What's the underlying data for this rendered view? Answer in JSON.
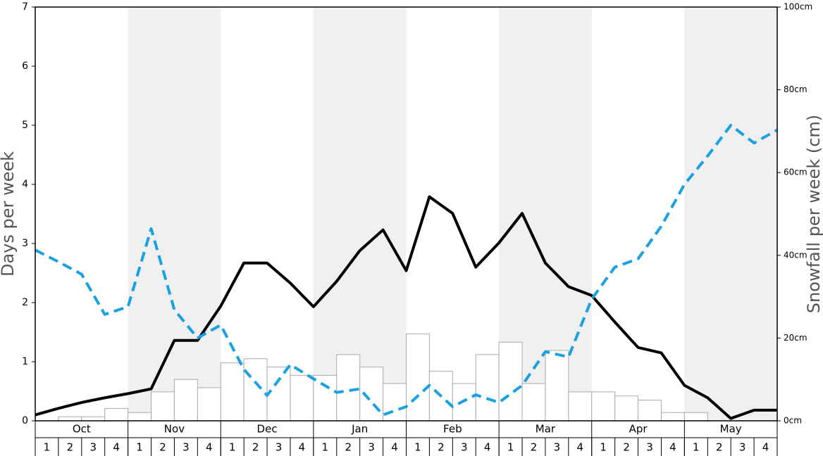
{
  "chart_data": [
    {
      "type": "bar",
      "months": [
        "Oct",
        "Nov",
        "Dec",
        "Jan",
        "Feb",
        "Mar",
        "Apr",
        "May"
      ],
      "categories": [
        "1",
        "2",
        "3",
        "4",
        "1",
        "2",
        "3",
        "4",
        "1",
        "2",
        "3",
        "4",
        "1",
        "2",
        "3",
        "4",
        "1",
        "2",
        "3",
        "4",
        "1",
        "2",
        "3",
        "4",
        "1",
        "2",
        "3",
        "4",
        "1",
        "2",
        "3",
        "4"
      ],
      "series": [
        {
          "axis": "y2",
          "color": "#ffffff",
          "values": [
            0,
            1,
            1,
            3,
            2,
            7,
            10,
            8,
            14,
            15,
            13,
            11,
            11,
            16,
            13,
            9,
            21,
            12,
            9,
            16,
            19,
            9,
            17,
            7,
            7,
            6,
            5,
            2,
            2,
            0,
            0,
            0
          ]
        }
      ],
      "y2label": "Snowfall per week (cm)",
      "y2lim": [
        0,
        100
      ],
      "y2ticks": [
        {
          "value": 0,
          "label": "0cm"
        },
        {
          "value": 20,
          "label": "20cm"
        },
        {
          "value": 40,
          "label": "40cm"
        },
        {
          "value": 60,
          "label": "60cm"
        },
        {
          "value": 80,
          "label": "80cm"
        },
        {
          "value": 100,
          "label": "100cm"
        }
      ]
    },
    {
      "type": "line",
      "x": [
        0,
        1,
        2,
        3,
        4,
        5,
        6,
        7,
        8,
        9,
        10,
        11,
        12,
        13,
        14,
        15,
        16,
        17,
        18,
        19,
        20,
        21,
        22,
        23,
        24,
        25,
        26,
        27,
        28,
        29,
        30,
        31,
        32
      ],
      "xlim": [
        0,
        32
      ],
      "ylabel": "Days per week",
      "ylim": [
        0,
        7
      ],
      "yticks": [
        0,
        1,
        2,
        3,
        4,
        5,
        6,
        7
      ],
      "series": [
        {
          "color": "#000000",
          "values": [
            0.1,
            0.21,
            0.31,
            0.39,
            0.46,
            0.54,
            1.36,
            1.36,
            1.94,
            2.67,
            2.67,
            2.33,
            1.93,
            2.36,
            2.88,
            3.23,
            2.54,
            3.79,
            3.51,
            2.6,
            3.01,
            3.51,
            2.67,
            2.27,
            2.12,
            1.67,
            1.24,
            1.15,
            0.6,
            0.39,
            0.04,
            0.18,
            0.18
          ]
        },
        {
          "color": "#1ba1e2",
          "dashed": true,
          "values": [
            2.89,
            2.69,
            2.48,
            1.8,
            1.93,
            3.25,
            1.88,
            1.4,
            1.62,
            0.87,
            0.43,
            0.95,
            0.71,
            0.48,
            0.54,
            0.1,
            0.24,
            0.6,
            0.24,
            0.44,
            0.31,
            0.6,
            1.17,
            1.08,
            2.06,
            2.6,
            2.74,
            3.29,
            4.0,
            4.48,
            5.0,
            4.7,
            4.92
          ]
        }
      ]
    }
  ]
}
